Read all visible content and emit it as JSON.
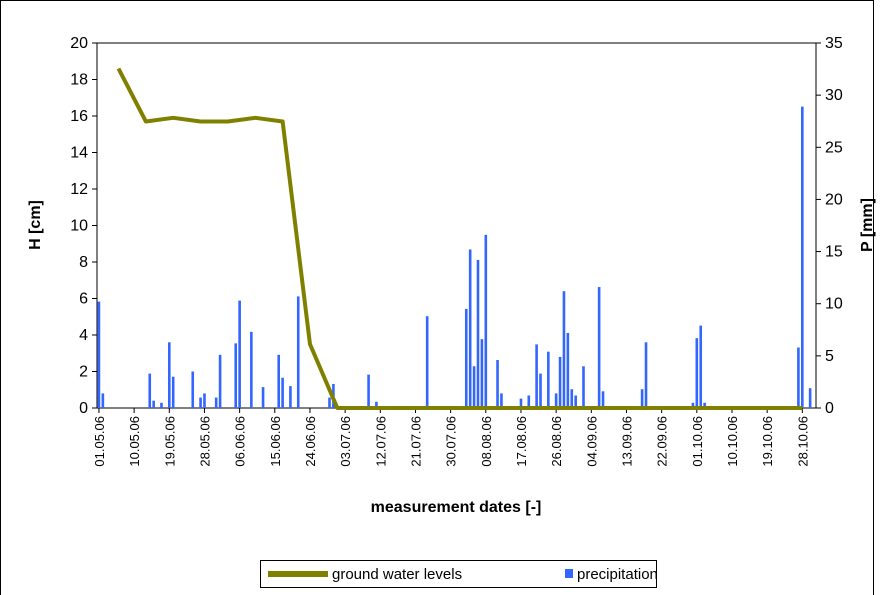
{
  "chart_data": {
    "type": "line-bar",
    "x_label": "measurement dates [-]",
    "y_label": "H [cm]",
    "y2_label": "P [mm]",
    "xlim": [
      "01.05.06",
      "31.10.06"
    ],
    "xticks": [
      "01.05.06",
      "10.05.06",
      "19.05.06",
      "28.05.06",
      "06.06.06",
      "15.06.06",
      "24.06.06",
      "03.07.06",
      "12.07.06",
      "21.07.06",
      "30.07.06",
      "08.08.06",
      "17.08.06",
      "26.08.06",
      "04.09.06",
      "13.09.06",
      "22.09.06",
      "01.10.06",
      "10.10.06",
      "19.10.06",
      "28.10.06"
    ],
    "ylim": [
      0,
      20
    ],
    "yticks": [
      0,
      2,
      4,
      6,
      8,
      10,
      12,
      14,
      16,
      18,
      20
    ],
    "y2lim": [
      0,
      35
    ],
    "y2ticks": [
      0,
      5,
      10,
      15,
      20,
      25,
      30,
      35
    ],
    "series": [
      {
        "name": "ground water levels",
        "type": "line",
        "color": "#808000",
        "axis": "y",
        "x": [
          "06.05.06",
          "13.05.06",
          "20.05.06",
          "27.05.06",
          "03.06.06",
          "10.06.06",
          "17.06.06",
          "24.06.06",
          "01.07.06",
          "08.07.06",
          "15.07.06",
          "22.07.06",
          "29.07.06",
          "05.08.06",
          "12.08.06",
          "19.08.06",
          "26.08.06",
          "02.09.06",
          "09.09.06",
          "16.09.06",
          "23.09.06",
          "30.09.06",
          "07.10.06",
          "14.10.06",
          "21.10.06",
          "28.10.06"
        ],
        "values": [
          18.6,
          15.7,
          15.9,
          15.7,
          15.7,
          15.9,
          15.7,
          3.5,
          0,
          0,
          0,
          0,
          0,
          0,
          0,
          0,
          0,
          0,
          0,
          0,
          0,
          0,
          0,
          0,
          0,
          0
        ]
      },
      {
        "name": "precipitation",
        "type": "bar",
        "color": "#3366ff",
        "axis": "y2",
        "x": [
          "01.05.06",
          "02.05.06",
          "14.05.06",
          "15.05.06",
          "17.05.06",
          "19.05.06",
          "20.05.06",
          "25.05.06",
          "27.05.06",
          "28.05.06",
          "31.05.06",
          "01.06.06",
          "05.06.06",
          "06.06.06",
          "09.06.06",
          "12.06.06",
          "16.06.06",
          "17.06.06",
          "19.06.06",
          "21.06.06",
          "29.06.06",
          "30.06.06",
          "09.07.06",
          "11.07.06",
          "24.07.06",
          "03.08.06",
          "04.08.06",
          "05.08.06",
          "06.08.06",
          "07.08.06",
          "08.08.06",
          "11.08.06",
          "12.08.06",
          "17.08.06",
          "19.08.06",
          "21.08.06",
          "22.08.06",
          "24.08.06",
          "26.08.06",
          "27.08.06",
          "28.08.06",
          "29.08.06",
          "30.08.06",
          "31.08.06",
          "02.09.06",
          "06.09.06",
          "07.09.06",
          "17.09.06",
          "18.09.06",
          "30.09.06",
          "01.10.06",
          "02.10.06",
          "03.10.06",
          "27.10.06",
          "28.10.06",
          "30.10.06"
        ],
        "values": [
          10.2,
          1.4,
          3.3,
          0.7,
          0.5,
          6.3,
          3.0,
          3.5,
          1.0,
          1.4,
          1.0,
          5.1,
          6.2,
          10.3,
          7.3,
          2.0,
          5.1,
          2.9,
          2.1,
          10.7,
          1.0,
          2.3,
          3.2,
          0.6,
          8.8,
          9.5,
          15.2,
          4.0,
          14.2,
          6.6,
          16.6,
          4.6,
          1.4,
          0.9,
          1.2,
          6.1,
          3.3,
          5.4,
          1.4,
          4.9,
          11.2,
          7.2,
          1.8,
          1.2,
          4.0,
          11.6,
          1.6,
          1.8,
          6.3,
          0.5,
          6.7,
          7.9,
          0.5,
          5.8,
          28.9,
          1.9
        ]
      }
    ]
  }
}
